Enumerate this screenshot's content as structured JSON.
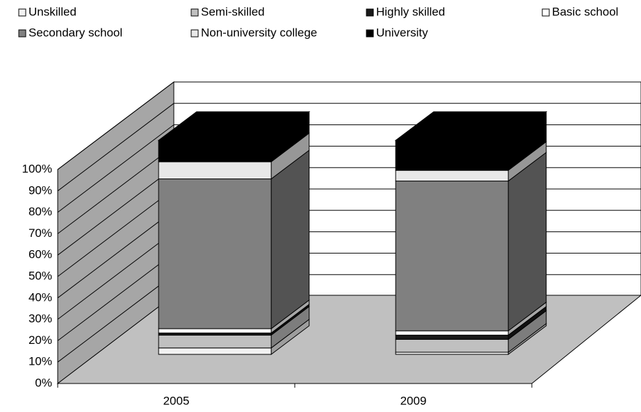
{
  "chart_data": {
    "type": "bar3d_stacked",
    "categories": [
      "2005",
      "2009"
    ],
    "series": [
      {
        "name": "Unskilled",
        "color": "#f2f2f2",
        "values": [
          3,
          1
        ]
      },
      {
        "name": "Semi-skilled",
        "color": "#c0c0c0",
        "values": [
          6,
          6
        ]
      },
      {
        "name": "Highly skilled",
        "color": "#1a1a1a",
        "values": [
          1,
          2
        ]
      },
      {
        "name": "Basic school",
        "color": "#ffffff",
        "values": [
          2,
          2
        ]
      },
      {
        "name": "Secondary school",
        "color": "#808080",
        "values": [
          70,
          70
        ]
      },
      {
        "name": "Non-university college",
        "color": "#e8e8e8",
        "values": [
          8,
          5
        ]
      },
      {
        "name": "University",
        "color": "#000000",
        "values": [
          10,
          14
        ]
      }
    ],
    "ylim": [
      0,
      100
    ],
    "yticks": [
      {
        "value": 0,
        "label": "0%"
      },
      {
        "value": 10,
        "label": "10%"
      },
      {
        "value": 20,
        "label": "20%"
      },
      {
        "value": 30,
        "label": "30%"
      },
      {
        "value": 40,
        "label": "40%"
      },
      {
        "value": 50,
        "label": "50%"
      },
      {
        "value": 60,
        "label": "60%"
      },
      {
        "value": 70,
        "label": "70%"
      },
      {
        "value": 80,
        "label": "80%"
      },
      {
        "value": 90,
        "label": "90%"
      },
      {
        "value": 100,
        "label": "100%"
      }
    ],
    "grid": true
  }
}
